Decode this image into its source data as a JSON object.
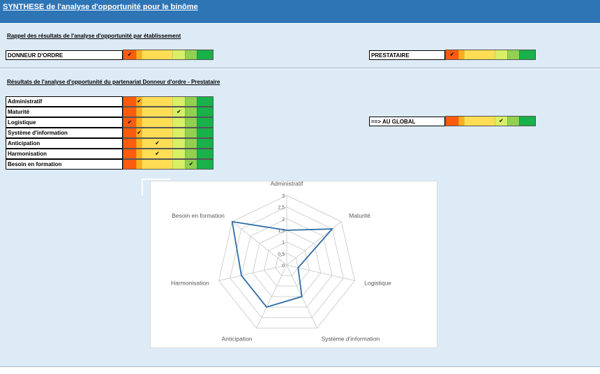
{
  "header": {
    "title": "SYNTHESE de l'analyse d'opportunité  pour  le binôme"
  },
  "section1": {
    "title": "Rappel des résultats de l'analyse d'opportunité par établissement"
  },
  "section2": {
    "title": "Résultats de l'analyse d'opportunité du partenariat  Donneur d'ordre - Prestataire"
  },
  "scale": {
    "segment_colors": [
      "#ff5b0f",
      "#ffad1f",
      "#ffdd55",
      "#d9ef66",
      "#92d050",
      "#18b14a"
    ],
    "check_glyph": "✔"
  },
  "etablissements": [
    {
      "label": "DONNEUR D'ORDRE",
      "level": 0
    },
    {
      "label": "PRESTATAIRE",
      "level": 0
    }
  ],
  "criteria": [
    {
      "label": "Administratif",
      "level": 1
    },
    {
      "label": "Maturité",
      "level": 3
    },
    {
      "label": "Logistique",
      "level": 0
    },
    {
      "label": "Système d'information",
      "level": 1
    },
    {
      "label": "Anticipation",
      "level": 2
    },
    {
      "label": "Harmonisation",
      "level": 2
    },
    {
      "label": "Besoin en formation",
      "level": 4
    }
  ],
  "global": {
    "label": "==> AU GLOBAL",
    "level": 3
  },
  "chart_data": {
    "type": "radar",
    "categories": [
      "Administratif",
      "Maturité",
      "Logistique",
      "Système d'information",
      "Anticipation",
      "Harmonisation",
      "Besoin en formation"
    ],
    "series": [
      {
        "values": [
          1.5,
          2.5,
          0.5,
          1.5,
          2,
          2,
          3
        ],
        "color": "#2e6da4"
      }
    ],
    "rlim": [
      0,
      3
    ],
    "ticks": [
      "0",
      "0,5",
      "1",
      "1,5",
      "2",
      "2,5",
      "3"
    ],
    "grid": true,
    "legend": "none"
  }
}
